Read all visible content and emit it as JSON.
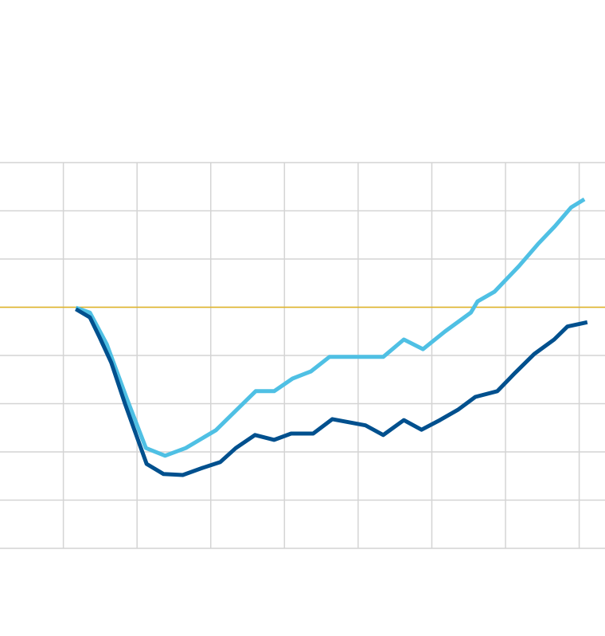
{
  "chart_data": {
    "type": "line",
    "xlim": [
      0.14,
      8.35
    ],
    "xticks": [
      1,
      2,
      3,
      4,
      5,
      6,
      7,
      8
    ],
    "ylim": [
      0,
      8
    ],
    "yticks": [
      0,
      1,
      2,
      3,
      4,
      5,
      6,
      7,
      8
    ],
    "grid": true,
    "grid_color": "#d4d4d4",
    "reference_line": {
      "value": 5,
      "color": "#e0b325"
    },
    "series": [
      {
        "color": "#4fc0e4",
        "x": [
          1.17,
          1.36,
          1.59,
          1.86,
          2.12,
          2.38,
          2.66,
          3.07,
          3.33,
          3.61,
          3.86,
          4.11,
          4.36,
          4.61,
          5.34,
          5.62,
          5.88,
          6.18,
          6.53,
          6.62,
          6.85,
          7.18,
          7.44,
          7.67,
          7.89,
          8.07
        ],
        "values": [
          4.99,
          4.89,
          4.23,
          3.11,
          2.08,
          1.92,
          2.08,
          2.45,
          2.84,
          3.26,
          3.26,
          3.52,
          3.67,
          3.97,
          3.97,
          4.33,
          4.13,
          4.5,
          4.89,
          5.12,
          5.32,
          5.85,
          6.31,
          6.68,
          7.07,
          7.24
        ]
      },
      {
        "color": "#00508e",
        "x": [
          1.17,
          1.36,
          1.49,
          1.65,
          1.84,
          2.13,
          2.36,
          2.62,
          2.89,
          3.13,
          3.34,
          3.6,
          3.86,
          4.09,
          4.39,
          4.65,
          5.1,
          5.34,
          5.62,
          5.86,
          6.11,
          6.36,
          6.59,
          6.89,
          7.13,
          7.39,
          7.66,
          7.84,
          8.11
        ],
        "values": [
          4.96,
          4.79,
          4.38,
          3.85,
          2.98,
          1.75,
          1.54,
          1.52,
          1.67,
          1.79,
          2.08,
          2.35,
          2.25,
          2.38,
          2.38,
          2.68,
          2.55,
          2.35,
          2.66,
          2.46,
          2.66,
          2.88,
          3.14,
          3.26,
          3.64,
          4.03,
          4.33,
          4.6,
          4.69
        ]
      }
    ]
  }
}
